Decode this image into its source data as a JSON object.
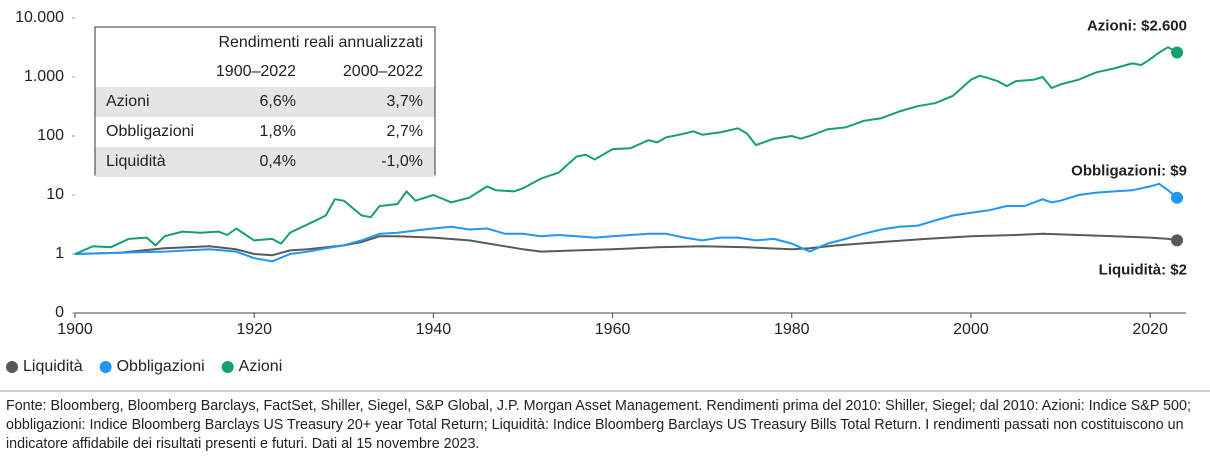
{
  "chart_data": {
    "type": "line",
    "log_y": true,
    "xlim": [
      1900,
      2024
    ],
    "xticks": [
      1900,
      1920,
      1940,
      1960,
      1980,
      2000,
      2020
    ],
    "ylim": [
      0.1,
      10000
    ],
    "yticks": [
      {
        "value": 0.1,
        "label": "0"
      },
      1,
      10,
      100,
      {
        "value": 1000,
        "label": "1.000"
      },
      {
        "value": 10000,
        "label": "10.000"
      }
    ],
    "series": [
      {
        "name": "Liquidità",
        "color": "#595959",
        "x": [
          1900,
          1905,
          1910,
          1915,
          1918,
          1920,
          1922,
          1924,
          1926,
          1930,
          1932,
          1934,
          1936,
          1940,
          1944,
          1948,
          1950,
          1952,
          1956,
          1960,
          1965,
          1970,
          1975,
          1980,
          1982,
          1985,
          1990,
          1995,
          2000,
          2005,
          2008,
          2012,
          2016,
          2020,
          2022,
          2023
        ],
        "values": [
          1,
          1.05,
          1.25,
          1.35,
          1.2,
          1.0,
          0.95,
          1.15,
          1.2,
          1.4,
          1.6,
          2.0,
          2.0,
          1.9,
          1.7,
          1.35,
          1.2,
          1.1,
          1.15,
          1.2,
          1.3,
          1.35,
          1.3,
          1.2,
          1.25,
          1.4,
          1.6,
          1.8,
          2.0,
          2.1,
          2.2,
          2.1,
          2.0,
          1.9,
          1.8,
          1.7
        ]
      },
      {
        "name": "Obbligazioni",
        "color": "#2196f3",
        "x": [
          1900,
          1905,
          1910,
          1915,
          1918,
          1920,
          1922,
          1924,
          1926,
          1928,
          1930,
          1932,
          1934,
          1936,
          1938,
          1940,
          1942,
          1944,
          1946,
          1948,
          1950,
          1952,
          1954,
          1956,
          1958,
          1960,
          1962,
          1964,
          1966,
          1968,
          1970,
          1972,
          1974,
          1976,
          1978,
          1980,
          1982,
          1984,
          1986,
          1988,
          1990,
          1992,
          1994,
          1996,
          1998,
          2000,
          2002,
          2004,
          2006,
          2008,
          2009,
          2010,
          2012,
          2014,
          2016,
          2018,
          2020,
          2021,
          2022,
          2023
        ],
        "values": [
          1,
          1.05,
          1.1,
          1.2,
          1.1,
          0.85,
          0.75,
          1.0,
          1.1,
          1.25,
          1.4,
          1.7,
          2.2,
          2.3,
          2.5,
          2.7,
          2.9,
          2.6,
          2.7,
          2.2,
          2.2,
          2.0,
          2.1,
          2.0,
          1.9,
          2.0,
          2.1,
          2.2,
          2.2,
          1.9,
          1.7,
          1.9,
          1.9,
          1.7,
          1.8,
          1.5,
          1.1,
          1.5,
          1.8,
          2.2,
          2.6,
          2.9,
          3.0,
          3.7,
          4.5,
          5,
          5.5,
          6.5,
          6.5,
          8.5,
          7.5,
          8,
          10,
          11,
          11.5,
          12,
          14,
          15.5,
          12,
          9
        ]
      },
      {
        "name": "Azioni",
        "color": "#16a06b",
        "x": [
          1900,
          1902,
          1904,
          1906,
          1908,
          1909,
          1910,
          1912,
          1914,
          1916,
          1917,
          1918,
          1920,
          1922,
          1923,
          1924,
          1926,
          1928,
          1929,
          1930,
          1932,
          1933,
          1934,
          1936,
          1937,
          1938,
          1940,
          1942,
          1944,
          1946,
          1947,
          1949,
          1950,
          1952,
          1954,
          1955,
          1956,
          1957,
          1958,
          1960,
          1962,
          1964,
          1965,
          1966,
          1968,
          1969,
          1970,
          1972,
          1974,
          1975,
          1976,
          1978,
          1980,
          1981,
          1982,
          1984,
          1986,
          1988,
          1990,
          1992,
          1994,
          1996,
          1998,
          2000,
          2001,
          2002,
          2003,
          2004,
          2005,
          2007,
          2008,
          2009,
          2010,
          2012,
          2014,
          2016,
          2018,
          2019,
          2020,
          2021,
          2022,
          2023
        ],
        "values": [
          1,
          1.35,
          1.3,
          1.8,
          1.9,
          1.4,
          2.0,
          2.4,
          2.3,
          2.4,
          2.1,
          2.7,
          1.7,
          1.8,
          1.5,
          2.3,
          3.2,
          4.5,
          8.5,
          8,
          4.5,
          4.2,
          6.5,
          7,
          11.5,
          8,
          10,
          7.5,
          9,
          14,
          12,
          11.5,
          13,
          19,
          24,
          33,
          45,
          48,
          40,
          60,
          62,
          85,
          78,
          95,
          110,
          120,
          105,
          115,
          135,
          110,
          70,
          90,
          100,
          90,
          100,
          130,
          140,
          180,
          200,
          260,
          320,
          360,
          480,
          900,
          1050,
          950,
          850,
          700,
          850,
          900,
          1000,
          650,
          750,
          900,
          1200,
          1400,
          1700,
          1600,
          2000,
          2600,
          3200,
          2600
        ]
      }
    ],
    "annotations": [
      "Liquidità: $2",
      "Obbligazioni: $9",
      "Azioni: $2.600"
    ],
    "table": {
      "title": "Rendimenti reali annualizzati",
      "columns": [
        "1900–2022",
        "2000–2022"
      ],
      "rows": [
        {
          "label": "Azioni",
          "values": [
            "6,6%",
            "3,7%"
          ]
        },
        {
          "label": "Obbligazioni",
          "values": [
            "1,8%",
            "2,7%"
          ]
        },
        {
          "label": "Liquidità",
          "values": [
            "0,4%",
            "-1,0%"
          ]
        }
      ]
    },
    "source": "Fonte: Bloomberg, Bloomberg Barclays, FactSet, Shiller, Siegel, S&P Global, J.P. Morgan Asset Management. Rendimenti prima del 2010: Shiller, Siegel; dal 2010: Azioni: Indice S&P 500; obbligazioni: Indice Bloomberg Barclays US Treasury 20+ year Total Return; Liquidità: Indice Bloomberg Barclays US Treasury Bills Total Return. I rendimenti passati non costituiscono un indicatore affidabile dei risultati presenti e futuri. Dati al 15 novembre 2023."
  }
}
